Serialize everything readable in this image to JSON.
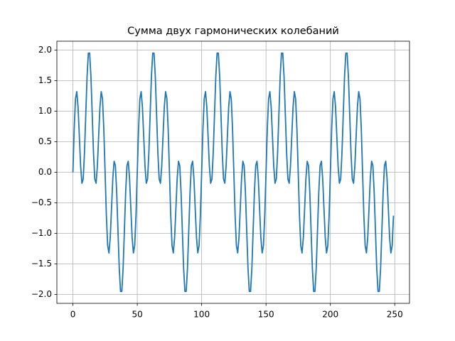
{
  "chart_data": {
    "type": "line",
    "title": "Сумма двух гармонических колебаний",
    "x": [
      0,
      1,
      2,
      3,
      4,
      5,
      6,
      7,
      8,
      9,
      10,
      11,
      12,
      13,
      14,
      15,
      16,
      17,
      18,
      19,
      20,
      21,
      22,
      23,
      24,
      25,
      26,
      27,
      28,
      29,
      30,
      31,
      32,
      33,
      34,
      35,
      36,
      37,
      38,
      39,
      40,
      41,
      42,
      43,
      44,
      45,
      46,
      47,
      48,
      49,
      50,
      51,
      52,
      53,
      54,
      55,
      56,
      57,
      58,
      59,
      60,
      61,
      62,
      63,
      64,
      65,
      66,
      67,
      68,
      69,
      70,
      71,
      72,
      73,
      74,
      75,
      76,
      77,
      78,
      79,
      80,
      81,
      82,
      83,
      84,
      85,
      86,
      87,
      88,
      89,
      90,
      91,
      92,
      93,
      94,
      95,
      96,
      97,
      98,
      99,
      100,
      101,
      102,
      103,
      104,
      105,
      106,
      107,
      108,
      109,
      110,
      111,
      112,
      113,
      114,
      115,
      116,
      117,
      118,
      119,
      120,
      121,
      122,
      123,
      124,
      125,
      126,
      127,
      128,
      129,
      130,
      131,
      132,
      133,
      134,
      135,
      136,
      137,
      138,
      139,
      140,
      141,
      142,
      143,
      144,
      145,
      146,
      147,
      148,
      149,
      150,
      151,
      152,
      153,
      154,
      155,
      156,
      157,
      158,
      159,
      160,
      161,
      162,
      163,
      164,
      165,
      166,
      167,
      168,
      169,
      170,
      171,
      172,
      173,
      174,
      175,
      176,
      177,
      178,
      179,
      180,
      181,
      182,
      183,
      184,
      185,
      186,
      187,
      188,
      189,
      190,
      191,
      192,
      193,
      194,
      195,
      196,
      197,
      198,
      199,
      200,
      201,
      202,
      203,
      204,
      205,
      206,
      207,
      208,
      209,
      210,
      211,
      212,
      213,
      214,
      215,
      216,
      217,
      218,
      219,
      220,
      221,
      222,
      223,
      224,
      225,
      226,
      227,
      228,
      229,
      230,
      231,
      232,
      233,
      234,
      235,
      236,
      237,
      238,
      239,
      240,
      241,
      242,
      243,
      244,
      245,
      246,
      247,
      248,
      249
    ],
    "values": [
      0,
      0.71,
      1.2,
      1.32,
      1.07,
      0.59,
      0.1,
      -0.18,
      -0.11,
      0.32,
      0.95,
      1.57,
      1.95,
      1.95,
      1.57,
      0.95,
      0.32,
      -0.11,
      -0.18,
      0.1,
      0.59,
      1.07,
      1.32,
      1.2,
      0.71,
      0,
      -0.71,
      -1.2,
      -1.32,
      -1.07,
      -0.59,
      -0.1,
      0.18,
      0.11,
      -0.32,
      -0.95,
      -1.57,
      -1.95,
      -1.95,
      -1.57,
      -0.95,
      -0.32,
      0.11,
      0.18,
      -0.1,
      -0.59,
      -1.07,
      -1.32,
      -1.2,
      -0.71,
      0,
      0.71,
      1.2,
      1.32,
      1.07,
      0.59,
      0.1,
      -0.18,
      -0.11,
      0.32,
      0.95,
      1.57,
      1.95,
      1.95,
      1.57,
      0.95,
      0.32,
      -0.11,
      -0.18,
      0.1,
      0.59,
      1.07,
      1.32,
      1.2,
      0.71,
      0,
      -0.71,
      -1.2,
      -1.32,
      -1.07,
      -0.59,
      -0.1,
      0.18,
      0.11,
      -0.32,
      -0.95,
      -1.57,
      -1.95,
      -1.95,
      -1.57,
      -0.95,
      -0.32,
      0.11,
      0.18,
      -0.1,
      -0.59,
      -1.07,
      -1.32,
      -1.2,
      -0.71,
      0,
      0.71,
      1.2,
      1.32,
      1.07,
      0.59,
      0.1,
      -0.18,
      -0.11,
      0.32,
      0.95,
      1.57,
      1.95,
      1.95,
      1.57,
      0.95,
      0.32,
      -0.11,
      -0.18,
      0.1,
      0.59,
      1.07,
      1.32,
      1.2,
      0.71,
      0,
      -0.71,
      -1.2,
      -1.32,
      -1.07,
      -0.59,
      -0.1,
      0.18,
      0.11,
      -0.32,
      -0.95,
      -1.57,
      -1.95,
      -1.95,
      -1.57,
      -0.95,
      -0.32,
      0.11,
      0.18,
      -0.1,
      -0.59,
      -1.07,
      -1.32,
      -1.2,
      -0.71,
      0,
      0.71,
      1.2,
      1.32,
      1.07,
      0.59,
      0.1,
      -0.18,
      -0.11,
      0.32,
      0.95,
      1.57,
      1.95,
      1.95,
      1.57,
      0.95,
      0.32,
      -0.11,
      -0.18,
      0.1,
      0.59,
      1.07,
      1.32,
      1.2,
      0.71,
      0,
      -0.71,
      -1.2,
      -1.32,
      -1.07,
      -0.59,
      -0.1,
      0.18,
      0.11,
      -0.32,
      -0.95,
      -1.57,
      -1.95,
      -1.95,
      -1.57,
      -0.95,
      -0.32,
      0.11,
      0.18,
      -0.1,
      -0.59,
      -1.07,
      -1.32,
      -1.2,
      -0.71,
      0,
      0.71,
      1.2,
      1.32,
      1.07,
      0.59,
      0.1,
      -0.18,
      -0.11,
      0.32,
      0.95,
      1.57,
      1.95,
      1.95,
      1.57,
      0.95,
      0.32,
      -0.11,
      -0.18,
      0.1,
      0.59,
      1.07,
      1.32,
      1.2,
      0.71,
      0,
      -0.71,
      -1.2,
      -1.32,
      -1.07,
      -0.59,
      -0.1,
      0.18,
      0.11,
      -0.32,
      -0.95,
      -1.57,
      -1.95,
      -1.95,
      -1.57,
      -0.95,
      -0.32,
      0.11,
      0.18,
      -0.1,
      -0.59,
      -1.07,
      -1.32,
      -1.2,
      -0.71
    ],
    "color": "#1f77b4",
    "xlim": [
      -12.45,
      261.45
    ],
    "xticks": [
      0,
      50,
      100,
      150,
      200,
      250
    ],
    "ylim": [
      -2.145,
      2.145
    ],
    "yticks": [
      {
        "value": -2,
        "label": "−2.0"
      },
      {
        "value": -1.5,
        "label": "−1.5"
      },
      {
        "value": -1,
        "label": "−1.0"
      },
      {
        "value": -0.5,
        "label": "−0.5"
      },
      {
        "value": 0,
        "label": "0.0"
      },
      {
        "value": 0.5,
        "label": "0.5"
      },
      {
        "value": 1,
        "label": "1.0"
      },
      {
        "value": 1.5,
        "label": "1.5"
      },
      {
        "value": 2,
        "label": "2.0"
      }
    ],
    "grid": true
  }
}
